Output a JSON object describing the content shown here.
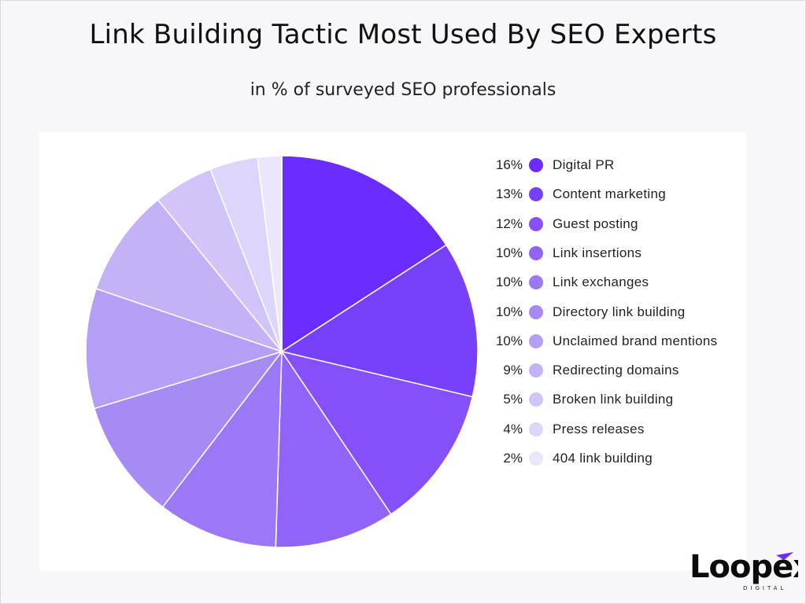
{
  "header": {
    "title": "Link Building Tactic Most Used By SEO Experts",
    "subtitle": "in % of surveyed SEO professionals"
  },
  "logo": {
    "name": "Loopex",
    "sub": "DIGITAL"
  },
  "chart_data": {
    "type": "pie",
    "title": "Link Building Tactic Most Used By SEO Experts",
    "subtitle": "in % of surveyed SEO professionals",
    "legend_position": "right",
    "start_angle": "12 o'clock, clockwise",
    "slices": [
      {
        "label": "Digital PR",
        "pct_label": "16%",
        "value": 16,
        "color": "#6a2cff"
      },
      {
        "label": "Content marketing",
        "pct_label": "13%",
        "value": 13,
        "color": "#7741fb"
      },
      {
        "label": "Guest posting",
        "pct_label": "12%",
        "value": 12,
        "color": "#8550fa"
      },
      {
        "label": "Link insertions",
        "pct_label": "10%",
        "value": 10,
        "color": "#9064f8"
      },
      {
        "label": "Link exchanges",
        "pct_label": "10%",
        "value": 10,
        "color": "#9a78f6"
      },
      {
        "label": "Directory link building",
        "pct_label": "10%",
        "value": 10,
        "color": "#a78bf5"
      },
      {
        "label": "Unclaimed brand mentions",
        "pct_label": "10%",
        "value": 10,
        "color": "#b59ff6"
      },
      {
        "label": "Redirecting domains",
        "pct_label": "9%",
        "value": 9,
        "color": "#c3b2f6"
      },
      {
        "label": "Broken link building",
        "pct_label": "5%",
        "value": 5,
        "color": "#d0c4f8"
      },
      {
        "label": "Press releases",
        "pct_label": "4%",
        "value": 4,
        "color": "#ddd5fa"
      },
      {
        "label": "404 link building",
        "pct_label": "2%",
        "value": 2,
        "color": "#ebe6fc"
      }
    ]
  }
}
